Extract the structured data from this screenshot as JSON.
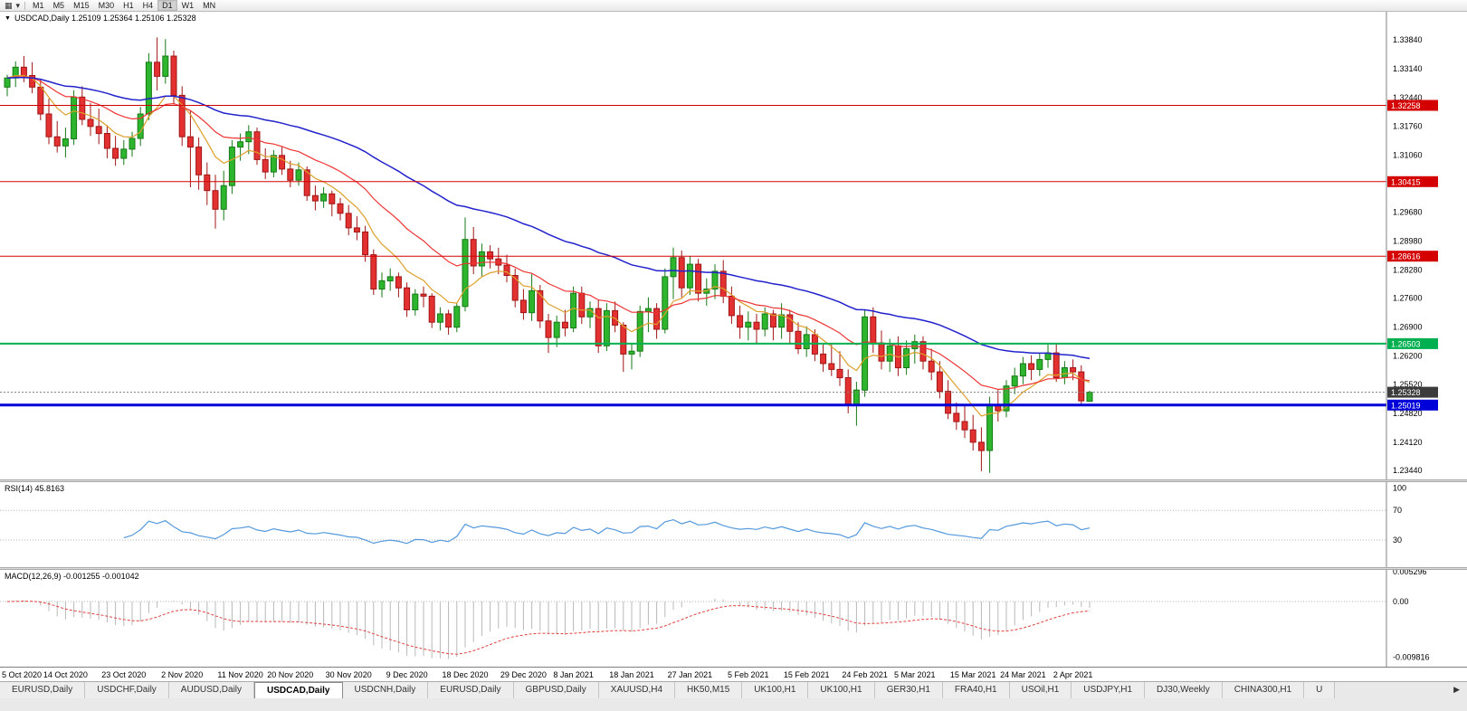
{
  "toolbar": {
    "chart_icon": "▦",
    "dropdown_icon": "▾",
    "timeframes": [
      {
        "label": "M1",
        "active": false
      },
      {
        "label": "M5",
        "active": false
      },
      {
        "label": "M15",
        "active": false
      },
      {
        "label": "M30",
        "active": false
      },
      {
        "label": "H1",
        "active": false
      },
      {
        "label": "H4",
        "active": false
      },
      {
        "label": "D1",
        "active": true
      },
      {
        "label": "W1",
        "active": false
      },
      {
        "label": "MN",
        "active": false
      }
    ]
  },
  "chart": {
    "title": "USDCAD,Daily 1.25109 1.25364 1.25106 1.25328",
    "marker_icon": "▼",
    "y_axis_labels": [
      "1.33840",
      "1.33140",
      "1.32440",
      "1.31760",
      "1.31060",
      "1.30360",
      "1.29680",
      "1.28980",
      "1.28280",
      "1.27600",
      "1.26900",
      "1.26200",
      "1.25520",
      "1.24820",
      "1.24120",
      "1.23440"
    ],
    "x_axis_labels": [
      "5 Oct 2020",
      "14 Oct 2020",
      "23 Oct 2020",
      "2 Nov 2020",
      "11 Nov 2020",
      "20 Nov 2020",
      "30 Nov 2020",
      "9 Dec 2020",
      "18 Dec 2020",
      "29 Dec 2020",
      "8 Jan 2021",
      "18 Jan 2021",
      "27 Jan 2021",
      "5 Feb 2021",
      "15 Feb 2021",
      "24 Feb 2021",
      "5 Mar 2021",
      "15 Mar 2021",
      "24 Mar 2021",
      "2 Apr 2021"
    ],
    "h_lines": [
      {
        "value": "1.32258",
        "price": 1.32258,
        "color": "#d40000",
        "width": 1
      },
      {
        "value": "1.30415",
        "price": 1.30415,
        "color": "#d40000",
        "width": 1
      },
      {
        "value": "1.28616",
        "price": 1.28616,
        "color": "#d40000",
        "width": 1
      },
      {
        "value": "1.26503",
        "price": 1.26503,
        "color": "#00b050",
        "width": 2
      },
      {
        "value": "1.25019",
        "price": 1.25019,
        "color": "#0000d8",
        "width": 3
      }
    ],
    "current_price": {
      "value": "1.25328",
      "price": 1.25328,
      "color": "#3c3c3c"
    },
    "moving_averages": [
      {
        "period": 8,
        "color": "#dd9f2b",
        "width": 1.2
      },
      {
        "period": 20,
        "color": "#ee3333",
        "width": 1.2
      },
      {
        "period": 50,
        "color": "#2222cc",
        "width": 1.5
      }
    ],
    "colors": {
      "up": "#2eb52e",
      "up_border": "#157a15",
      "down": "#e33030",
      "down_border": "#a01515",
      "rsi": "#5599dd",
      "macd_hist": "#b8b8b8",
      "macd_signal": "#e04040"
    }
  },
  "rsi": {
    "label": "RSI(14) 45.8163",
    "period": 14,
    "levels": [
      {
        "label": "100",
        "value": 100,
        "line": false
      },
      {
        "label": "70",
        "value": 70,
        "line": true
      },
      {
        "label": "30",
        "value": 30,
        "line": true
      }
    ]
  },
  "macd": {
    "label": "MACD(12,26,9) -0.001255 -0.001042",
    "fast": 12,
    "slow": 26,
    "signal": 9,
    "axis": [
      {
        "label": "0.005296",
        "value": 0.005296,
        "line": false
      },
      {
        "label": "0.00",
        "value": 0,
        "line": true
      },
      {
        "label": "-0.009816",
        "value": -0.009816,
        "line": false
      }
    ]
  },
  "tabs": [
    {
      "label": "EURUSD,Daily",
      "active": false
    },
    {
      "label": "USDCHF,Daily",
      "active": false
    },
    {
      "label": "AUDUSD,Daily",
      "active": false
    },
    {
      "label": "USDCAD,Daily",
      "active": true
    },
    {
      "label": "USDCNH,Daily",
      "active": false
    },
    {
      "label": "EURUSD,Daily",
      "active": false
    },
    {
      "label": "GBPUSD,Daily",
      "active": false
    },
    {
      "label": "XAUUSD,H4",
      "active": false
    },
    {
      "label": "HK50,M15",
      "active": false
    },
    {
      "label": "UK100,H1",
      "active": false
    },
    {
      "label": "UK100,H1",
      "active": false
    },
    {
      "label": "GER30,H1",
      "active": false
    },
    {
      "label": "FRA40,H1",
      "active": false
    },
    {
      "label": "USOil,H1",
      "active": false
    },
    {
      "label": "USDJPY,H1",
      "active": false
    },
    {
      "label": "DJ30,Weekly",
      "active": false
    },
    {
      "label": "CHINA300,H1",
      "active": false
    },
    {
      "label": "U",
      "active": false
    }
  ],
  "icons": {
    "tab_scroll_right": "▶"
  },
  "chart_data": {
    "type": "candlestick",
    "symbol": "USDCAD",
    "timeframe": "Daily",
    "current_bar": {
      "open": 1.25109,
      "high": 1.25364,
      "low": 1.25106,
      "close": 1.25328
    },
    "levels": [
      1.32258,
      1.30415,
      1.28616,
      1.26503,
      1.25019
    ],
    "price_axis_range": {
      "top": 1.3452,
      "bottom": 1.2322
    },
    "x_label_indices": [
      0,
      7,
      14,
      21,
      28,
      34,
      41,
      48,
      55,
      62,
      68,
      75,
      82,
      89,
      96,
      103,
      109,
      116,
      122,
      128
    ],
    "ohlc": [
      [
        1.327,
        1.33,
        1.3248,
        1.3292
      ],
      [
        1.3292,
        1.3332,
        1.327,
        1.3318
      ],
      [
        1.3318,
        1.3345,
        1.3282,
        1.3298
      ],
      [
        1.3298,
        1.333,
        1.3255,
        1.327
      ],
      [
        1.327,
        1.3288,
        1.319,
        1.3205
      ],
      [
        1.3205,
        1.3242,
        1.3132,
        1.315
      ],
      [
        1.315,
        1.3188,
        1.3112,
        1.3128
      ],
      [
        1.3128,
        1.3172,
        1.31,
        1.3145
      ],
      [
        1.3145,
        1.3262,
        1.313,
        1.3246
      ],
      [
        1.3246,
        1.3272,
        1.3178,
        1.3192
      ],
      [
        1.3192,
        1.3232,
        1.3152,
        1.3175
      ],
      [
        1.3175,
        1.3218,
        1.3132,
        1.3158
      ],
      [
        1.3158,
        1.3178,
        1.3098,
        1.3122
      ],
      [
        1.3122,
        1.3152,
        1.308,
        1.3098
      ],
      [
        1.3098,
        1.3142,
        1.3082,
        1.312
      ],
      [
        1.312,
        1.3162,
        1.3102,
        1.3146
      ],
      [
        1.3146,
        1.3222,
        1.3128,
        1.3205
      ],
      [
        1.3205,
        1.3352,
        1.319,
        1.333
      ],
      [
        1.333,
        1.339,
        1.3262,
        1.3296
      ],
      [
        1.3296,
        1.3386,
        1.3278,
        1.3345
      ],
      [
        1.3345,
        1.3358,
        1.3228,
        1.325
      ],
      [
        1.325,
        1.3272,
        1.3128,
        1.315
      ],
      [
        1.315,
        1.3212,
        1.3028,
        1.3125
      ],
      [
        1.3125,
        1.3148,
        1.3022,
        1.3058
      ],
      [
        1.3058,
        1.3088,
        1.2985,
        1.302
      ],
      [
        1.302,
        1.3058,
        1.2928,
        1.2975
      ],
      [
        1.2975,
        1.3068,
        1.2948,
        1.3032
      ],
      [
        1.3032,
        1.3142,
        1.3012,
        1.3125
      ],
      [
        1.3125,
        1.3158,
        1.3092,
        1.3138
      ],
      [
        1.3138,
        1.3178,
        1.3108,
        1.3162
      ],
      [
        1.3162,
        1.3172,
        1.3082,
        1.3095
      ],
      [
        1.3095,
        1.3122,
        1.3048,
        1.3065
      ],
      [
        1.3065,
        1.3118,
        1.3052,
        1.3105
      ],
      [
        1.3105,
        1.3125,
        1.3058,
        1.3072
      ],
      [
        1.3072,
        1.3092,
        1.3028,
        1.3045
      ],
      [
        1.3045,
        1.3088,
        1.3032,
        1.307
      ],
      [
        1.307,
        1.3078,
        1.2995,
        1.3008
      ],
      [
        1.3008,
        1.3032,
        1.2972,
        1.2995
      ],
      [
        1.2995,
        1.3028,
        1.2978,
        1.3012
      ],
      [
        1.3012,
        1.302,
        1.2958,
        1.2988
      ],
      [
        1.2988,
        1.3002,
        1.2948,
        1.2965
      ],
      [
        1.2965,
        1.2985,
        1.2912,
        1.293
      ],
      [
        1.293,
        1.2958,
        1.29,
        1.292
      ],
      [
        1.292,
        1.2935,
        1.2848,
        1.2865
      ],
      [
        1.2865,
        1.2878,
        1.2768,
        1.2782
      ],
      [
        1.2782,
        1.2822,
        1.2762,
        1.2802
      ],
      [
        1.2802,
        1.2832,
        1.2778,
        1.2812
      ],
      [
        1.2812,
        1.2822,
        1.2762,
        1.2785
      ],
      [
        1.2785,
        1.2798,
        1.2715,
        1.2732
      ],
      [
        1.2732,
        1.2782,
        1.2718,
        1.277
      ],
      [
        1.277,
        1.2788,
        1.2738,
        1.2765
      ],
      [
        1.2765,
        1.2772,
        1.2688,
        1.2702
      ],
      [
        1.2702,
        1.2738,
        1.2682,
        1.2722
      ],
      [
        1.2722,
        1.2732,
        1.2672,
        1.269
      ],
      [
        1.269,
        1.2748,
        1.2678,
        1.274
      ],
      [
        1.274,
        1.2955,
        1.2728,
        1.2902
      ],
      [
        1.2902,
        1.2932,
        1.2818,
        1.2838
      ],
      [
        1.2838,
        1.2892,
        1.2812,
        1.2872
      ],
      [
        1.2872,
        1.2888,
        1.2832,
        1.2855
      ],
      [
        1.2855,
        1.2882,
        1.2818,
        1.284
      ],
      [
        1.284,
        1.2865,
        1.2798,
        1.2815
      ],
      [
        1.2815,
        1.2832,
        1.2738,
        1.2755
      ],
      [
        1.2755,
        1.2782,
        1.2708,
        1.2725
      ],
      [
        1.2725,
        1.2818,
        1.2705,
        1.2778
      ],
      [
        1.2778,
        1.2792,
        1.2688,
        1.2705
      ],
      [
        1.2705,
        1.2722,
        1.2628,
        1.2665
      ],
      [
        1.2665,
        1.2718,
        1.2642,
        1.2702
      ],
      [
        1.2702,
        1.2732,
        1.2668,
        1.2688
      ],
      [
        1.2688,
        1.2788,
        1.2678,
        1.2772
      ],
      [
        1.2772,
        1.2788,
        1.2698,
        1.2715
      ],
      [
        1.2715,
        1.2752,
        1.2688,
        1.2735
      ],
      [
        1.2735,
        1.2755,
        1.2628,
        1.2645
      ],
      [
        1.2645,
        1.2748,
        1.2632,
        1.273
      ],
      [
        1.273,
        1.2752,
        1.2678,
        1.2695
      ],
      [
        1.2695,
        1.2702,
        1.2582,
        1.2625
      ],
      [
        1.2625,
        1.2652,
        1.2588,
        1.2632
      ],
      [
        1.2632,
        1.2742,
        1.2618,
        1.2728
      ],
      [
        1.2728,
        1.2762,
        1.2678,
        1.2735
      ],
      [
        1.2735,
        1.2748,
        1.2662,
        1.2685
      ],
      [
        1.2685,
        1.2832,
        1.2675,
        1.2812
      ],
      [
        1.2812,
        1.2882,
        1.2758,
        1.2858
      ],
      [
        1.2858,
        1.2875,
        1.2762,
        1.2785
      ],
      [
        1.2785,
        1.2862,
        1.2768,
        1.2842
      ],
      [
        1.2842,
        1.2855,
        1.2752,
        1.2772
      ],
      [
        1.2772,
        1.2808,
        1.2742,
        1.2782
      ],
      [
        1.2782,
        1.2842,
        1.2758,
        1.2825
      ],
      [
        1.2825,
        1.2852,
        1.2748,
        1.2765
      ],
      [
        1.2765,
        1.2788,
        1.2698,
        1.2718
      ],
      [
        1.2718,
        1.2742,
        1.2662,
        1.269
      ],
      [
        1.269,
        1.2728,
        1.2658,
        1.2702
      ],
      [
        1.2702,
        1.2722,
        1.2652,
        1.2685
      ],
      [
        1.2685,
        1.2738,
        1.2668,
        1.2722
      ],
      [
        1.2722,
        1.2732,
        1.2658,
        1.269
      ],
      [
        1.269,
        1.2748,
        1.2662,
        1.272
      ],
      [
        1.272,
        1.2732,
        1.2652,
        1.268
      ],
      [
        1.268,
        1.2702,
        1.2625,
        1.2638
      ],
      [
        1.2638,
        1.2692,
        1.2618,
        1.2672
      ],
      [
        1.2672,
        1.2685,
        1.2608,
        1.2625
      ],
      [
        1.2625,
        1.2648,
        1.2582,
        1.2602
      ],
      [
        1.2602,
        1.2648,
        1.2572,
        1.2588
      ],
      [
        1.2588,
        1.2632,
        1.2548,
        1.2568
      ],
      [
        1.2568,
        1.2588,
        1.2482,
        1.2502
      ],
      [
        1.2502,
        1.2558,
        1.2452,
        1.2538
      ],
      [
        1.2538,
        1.2732,
        1.2522,
        1.2715
      ],
      [
        1.2715,
        1.2738,
        1.2628,
        1.2652
      ],
      [
        1.2652,
        1.2682,
        1.2588,
        1.2608
      ],
      [
        1.2608,
        1.2662,
        1.2582,
        1.2645
      ],
      [
        1.2645,
        1.2668,
        1.2572,
        1.2592
      ],
      [
        1.2592,
        1.2658,
        1.2575,
        1.2638
      ],
      [
        1.2638,
        1.2672,
        1.2602,
        1.2655
      ],
      [
        1.2655,
        1.2668,
        1.2588,
        1.2608
      ],
      [
        1.2608,
        1.2638,
        1.2562,
        1.2582
      ],
      [
        1.2582,
        1.2608,
        1.2518,
        1.2535
      ],
      [
        1.2535,
        1.2562,
        1.2468,
        1.2482
      ],
      [
        1.2482,
        1.2508,
        1.2442,
        1.2462
      ],
      [
        1.2462,
        1.2502,
        1.2422,
        1.2442
      ],
      [
        1.2442,
        1.2478,
        1.2392,
        1.2412
      ],
      [
        1.2412,
        1.2448,
        1.2342,
        1.2392
      ],
      [
        1.2392,
        1.2522,
        1.2338,
        1.2502
      ],
      [
        1.2502,
        1.2538,
        1.2462,
        1.2488
      ],
      [
        1.2488,
        1.2562,
        1.2472,
        1.2548
      ],
      [
        1.2548,
        1.2592,
        1.2528,
        1.2572
      ],
      [
        1.2572,
        1.2618,
        1.2552,
        1.2602
      ],
      [
        1.2602,
        1.2622,
        1.2562,
        1.2588
      ],
      [
        1.2588,
        1.2628,
        1.2572,
        1.2612
      ],
      [
        1.2612,
        1.2648,
        1.2592,
        1.2628
      ],
      [
        1.2628,
        1.2652,
        1.2558,
        1.2568
      ],
      [
        1.2568,
        1.2608,
        1.2552,
        1.2592
      ],
      [
        1.2592,
        1.2612,
        1.2562,
        1.2582
      ],
      [
        1.2582,
        1.2598,
        1.2502,
        1.2512
      ],
      [
        1.25109,
        1.25364,
        1.25106,
        1.25328
      ]
    ]
  }
}
